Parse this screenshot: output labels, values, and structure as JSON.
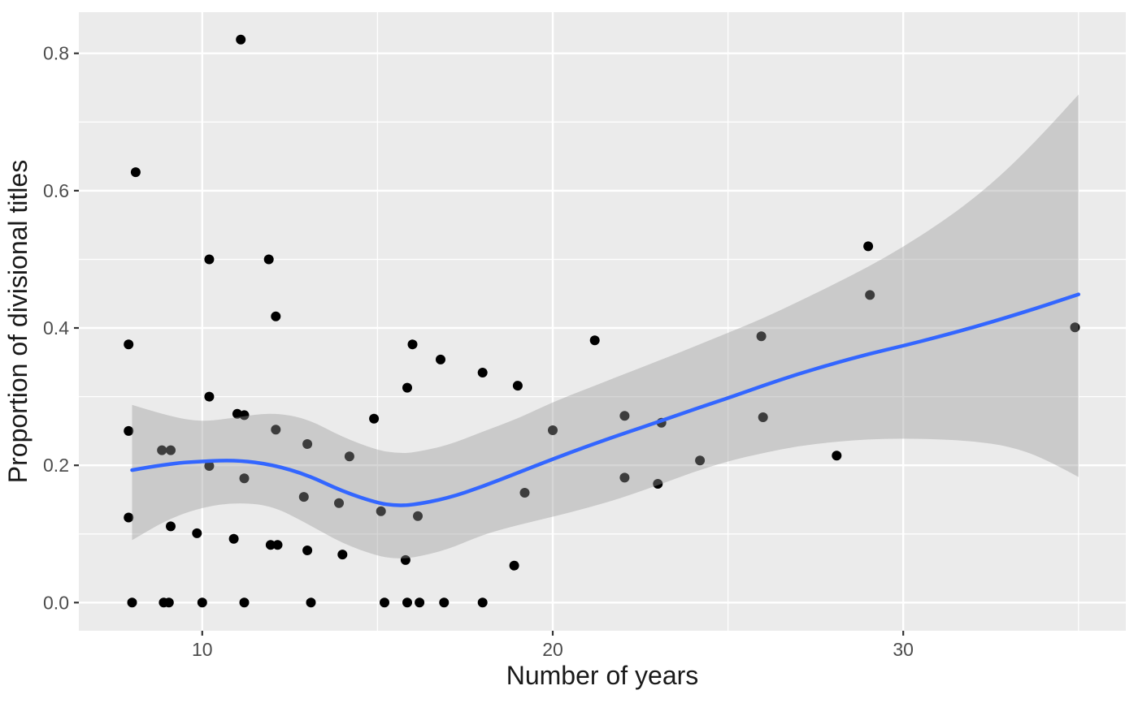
{
  "chart_data": {
    "type": "scatter",
    "title": "",
    "xlabel": "Number of years",
    "ylabel": "Proportion of divisional titles",
    "legend": false,
    "grid": true,
    "x_domain": [
      6.48,
      36.35
    ],
    "y_domain": [
      -0.041,
      0.86
    ],
    "x_ticks": [
      10,
      20,
      30
    ],
    "x_tick_labels": [
      "10",
      "20",
      "30"
    ],
    "x_minor_ticks": [
      15,
      25,
      35
    ],
    "y_ticks": [
      0.0,
      0.2,
      0.4,
      0.6,
      0.8
    ],
    "y_tick_labels": [
      "0.0",
      "0.2",
      "0.4",
      "0.6",
      "0.8"
    ],
    "y_minor_ticks": [
      0.1,
      0.3,
      0.5,
      0.7
    ],
    "points": [
      [
        7.9,
        0.376
      ],
      [
        7.9,
        0.25
      ],
      [
        7.9,
        0.124
      ],
      [
        8.0,
        0.0
      ],
      [
        8.1,
        0.627
      ],
      [
        8.85,
        0.222
      ],
      [
        9.1,
        0.222
      ],
      [
        8.9,
        0.0
      ],
      [
        9.05,
        0.0
      ],
      [
        9.1,
        0.111
      ],
      [
        9.85,
        0.101
      ],
      [
        10.0,
        0.0
      ],
      [
        10.2,
        0.199
      ],
      [
        10.2,
        0.5
      ],
      [
        10.2,
        0.3
      ],
      [
        10.9,
        0.093
      ],
      [
        11.1,
        0.82
      ],
      [
        11.0,
        0.275
      ],
      [
        11.2,
        0.273
      ],
      [
        11.2,
        0.181
      ],
      [
        11.2,
        0.0
      ],
      [
        11.9,
        0.5
      ],
      [
        11.95,
        0.084
      ],
      [
        12.1,
        0.252
      ],
      [
        12.1,
        0.417
      ],
      [
        12.15,
        0.084
      ],
      [
        12.9,
        0.154
      ],
      [
        13.0,
        0.231
      ],
      [
        13.0,
        0.076
      ],
      [
        13.1,
        0.0
      ],
      [
        13.9,
        0.145
      ],
      [
        14.0,
        0.07
      ],
      [
        14.2,
        0.213
      ],
      [
        14.9,
        0.268
      ],
      [
        15.1,
        0.133
      ],
      [
        15.2,
        0.0
      ],
      [
        15.85,
        0.313
      ],
      [
        15.8,
        0.062
      ],
      [
        15.85,
        0.0
      ],
      [
        16.0,
        0.376
      ],
      [
        16.15,
        0.126
      ],
      [
        16.2,
        0.0
      ],
      [
        16.8,
        0.354
      ],
      [
        16.9,
        0.0
      ],
      [
        18.0,
        0.0
      ],
      [
        18.0,
        0.335
      ],
      [
        18.9,
        0.054
      ],
      [
        19.0,
        0.316
      ],
      [
        19.2,
        0.16
      ],
      [
        20.0,
        0.251
      ],
      [
        21.2,
        0.382
      ],
      [
        22.05,
        0.272
      ],
      [
        22.05,
        0.182
      ],
      [
        23.0,
        0.173
      ],
      [
        23.1,
        0.262
      ],
      [
        24.2,
        0.207
      ],
      [
        25.95,
        0.388
      ],
      [
        26.0,
        0.27
      ],
      [
        28.1,
        0.214
      ],
      [
        29.0,
        0.519
      ],
      [
        29.05,
        0.448
      ],
      [
        34.9,
        0.401
      ]
    ],
    "smooth": {
      "method": "loess",
      "series": [
        [
          8,
          0.193,
          0.091,
          0.288
        ],
        [
          9,
          0.202,
          0.121,
          0.272
        ],
        [
          10,
          0.206,
          0.139,
          0.263
        ],
        [
          11,
          0.2075,
          0.146,
          0.27
        ],
        [
          12,
          0.201,
          0.141,
          0.277
        ],
        [
          13,
          0.186,
          0.115,
          0.268
        ],
        [
          14,
          0.162,
          0.086,
          0.241
        ],
        [
          15,
          0.145,
          0.068,
          0.222
        ],
        [
          15.5,
          0.1415,
          0.064,
          0.218
        ],
        [
          16,
          0.142,
          0.065,
          0.218
        ],
        [
          17,
          0.152,
          0.077,
          0.229
        ],
        [
          18,
          0.169,
          0.099,
          0.249
        ],
        [
          19,
          0.189,
          0.113,
          0.268
        ],
        [
          20,
          0.209,
          0.125,
          0.292
        ],
        [
          21,
          0.228,
          0.138,
          0.312
        ],
        [
          22,
          0.246,
          0.153,
          0.332
        ],
        [
          23,
          0.263,
          0.171,
          0.352
        ],
        [
          24,
          0.281,
          0.19,
          0.372
        ],
        [
          25,
          0.298,
          0.206,
          0.393
        ],
        [
          26,
          0.316,
          0.218,
          0.414
        ],
        [
          27,
          0.333,
          0.228,
          0.438
        ],
        [
          28,
          0.348,
          0.234,
          0.463
        ],
        [
          29,
          0.362,
          0.238,
          0.489
        ],
        [
          30,
          0.374,
          0.239,
          0.518
        ],
        [
          31,
          0.387,
          0.238,
          0.551
        ],
        [
          32,
          0.401,
          0.235,
          0.588
        ],
        [
          33,
          0.416,
          0.228,
          0.632
        ],
        [
          34,
          0.432,
          0.211,
          0.684
        ],
        [
          35,
          0.449,
          0.183,
          0.74
        ]
      ]
    },
    "colors": {
      "figure_bg": "#FFFFFF",
      "panel_bg": "#EBEBEB",
      "grid": "#FFFFFF",
      "point": "#000000",
      "smooth_line": "#3366FF",
      "ribbon": "#999999",
      "ribbon_opacity": 0.4,
      "tick_mark": "#333333",
      "tick_label": "#4D4D4D",
      "axis_title": "#1A1A1A"
    }
  }
}
